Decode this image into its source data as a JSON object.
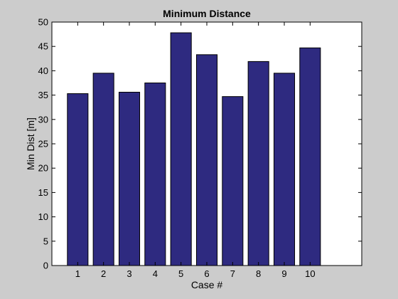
{
  "chart_data": {
    "type": "bar",
    "title": "Minimum Distance",
    "xlabel": "Case #",
    "ylabel": "Min Dist [m]",
    "categories": [
      "1",
      "2",
      "3",
      "4",
      "5",
      "6",
      "7",
      "8",
      "9",
      "10"
    ],
    "values": [
      35.3,
      39.5,
      35.6,
      37.5,
      47.8,
      43.3,
      34.7,
      41.9,
      39.5,
      44.7
    ],
    "xlim": [
      0,
      12
    ],
    "ylim": [
      0,
      50
    ],
    "yticks": [
      0,
      5,
      10,
      15,
      20,
      25,
      30,
      35,
      40,
      45,
      50
    ],
    "grid": false,
    "bar_color": "#2e2a80",
    "background_color": "#cccccc",
    "plot_background_color": "#ffffff"
  }
}
